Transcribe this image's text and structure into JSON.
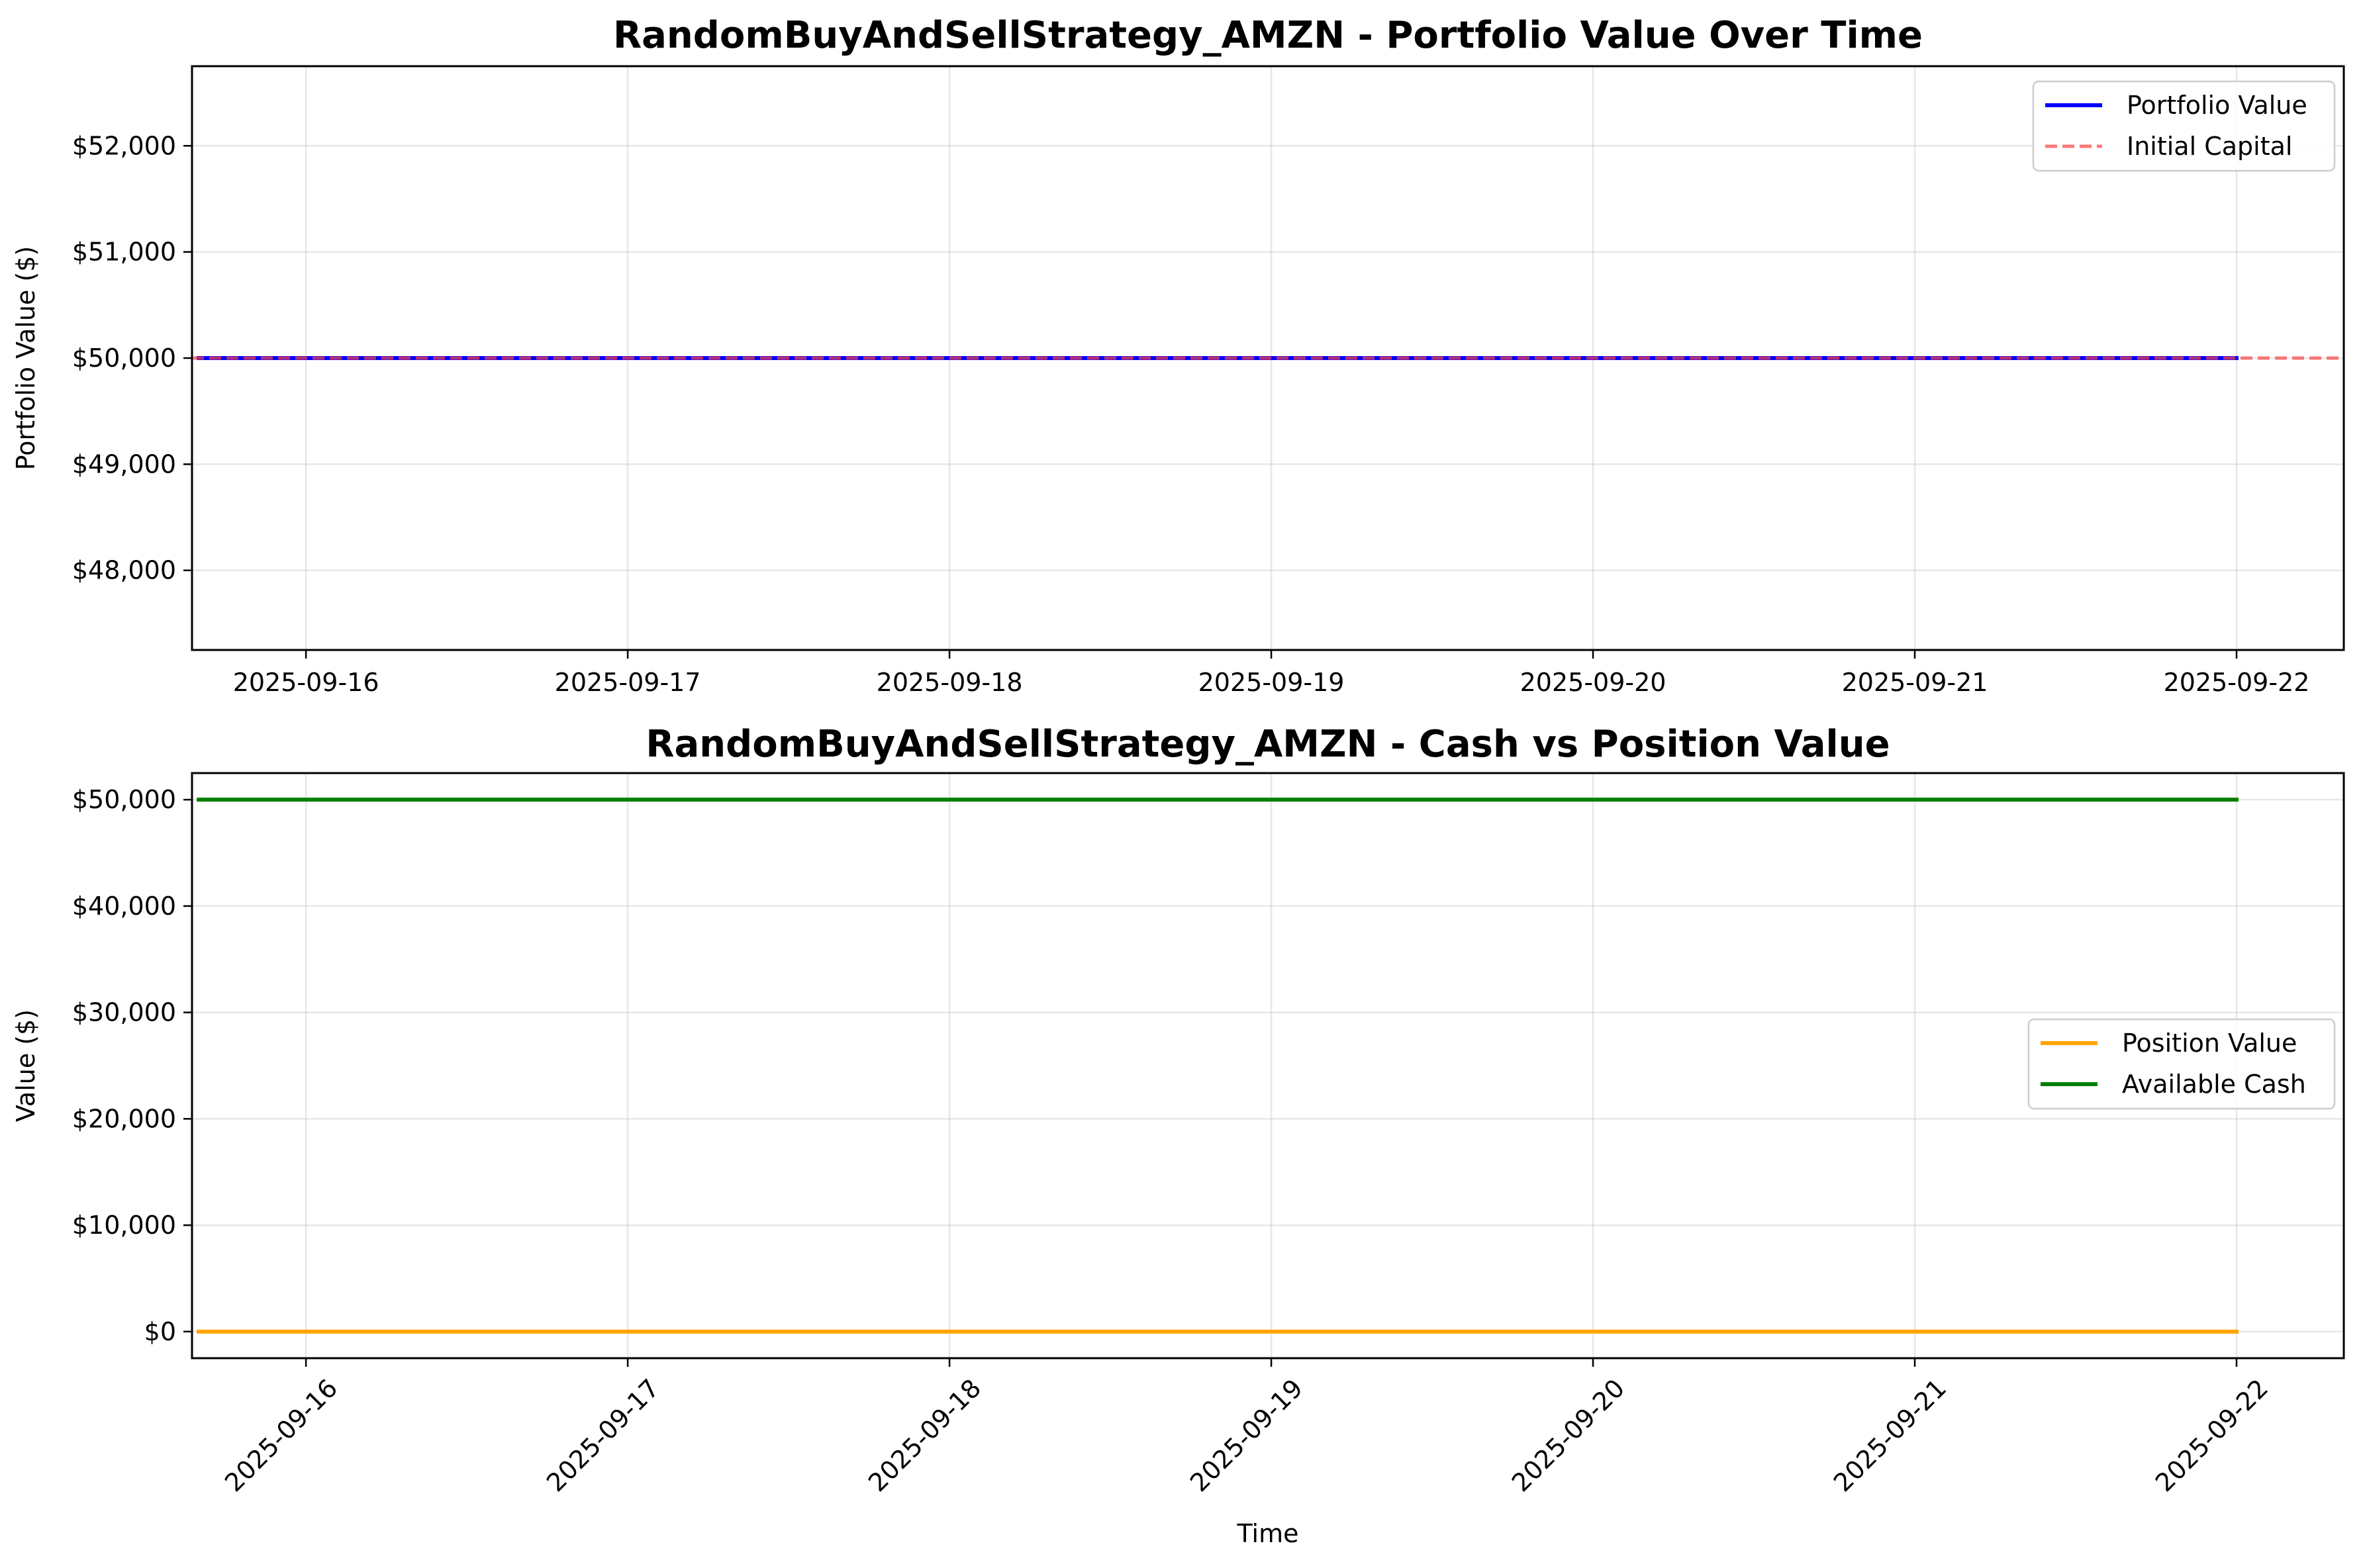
{
  "chart_data": [
    {
      "type": "line",
      "title": "RandomBuyAndSellStrategy_AMZN - Portfolio Value Over Time",
      "xlabel": "",
      "ylabel": "Portfolio Value ($)",
      "x_range": [
        "2025-09-15T15:30",
        "2025-09-22T08:00"
      ],
      "ylim": [
        47250,
        52750
      ],
      "x_ticks": [
        "2025-09-16",
        "2025-09-17",
        "2025-09-18",
        "2025-09-19",
        "2025-09-20",
        "2025-09-21",
        "2025-09-22"
      ],
      "x_tick_rotation": 0,
      "y_ticks": [
        48000,
        49000,
        50000,
        51000,
        52000
      ],
      "y_tick_labels": [
        "$48,000",
        "$49,000",
        "$50,000",
        "$51,000",
        "$52,000"
      ],
      "grid": true,
      "legend_position": "top-right",
      "series": [
        {
          "name": "Portfolio Value",
          "color": "#0000ff",
          "style": "solid",
          "x": [
            "2025-09-15T16:00",
            "2025-09-22T00:00"
          ],
          "y": [
            50000,
            50000
          ]
        }
      ],
      "reference_lines": [
        {
          "name": "Initial Capital",
          "color": "#ff4040",
          "style": "dashed",
          "y": 50000
        }
      ]
    },
    {
      "type": "line",
      "title": "RandomBuyAndSellStrategy_AMZN - Cash vs Position Value",
      "xlabel": "Time",
      "ylabel": "Value ($)",
      "x_range": [
        "2025-09-15T15:30",
        "2025-09-22T08:00"
      ],
      "ylim": [
        -2500,
        52500
      ],
      "x_ticks": [
        "2025-09-16",
        "2025-09-17",
        "2025-09-18",
        "2025-09-19",
        "2025-09-20",
        "2025-09-21",
        "2025-09-22"
      ],
      "x_tick_rotation": -45,
      "y_ticks": [
        0,
        10000,
        20000,
        30000,
        40000,
        50000
      ],
      "y_tick_labels": [
        "$0",
        "$10,000",
        "$20,000",
        "$30,000",
        "$40,000",
        "$50,000"
      ],
      "grid": true,
      "legend_position": "center-right",
      "series": [
        {
          "name": "Position Value",
          "color": "#ffa500",
          "style": "solid",
          "x": [
            "2025-09-15T16:00",
            "2025-09-22T00:00"
          ],
          "y": [
            0,
            0
          ]
        },
        {
          "name": "Available Cash",
          "color": "#008000",
          "style": "solid",
          "x": [
            "2025-09-15T16:00",
            "2025-09-22T00:00"
          ],
          "y": [
            50000,
            50000
          ]
        }
      ]
    }
  ]
}
